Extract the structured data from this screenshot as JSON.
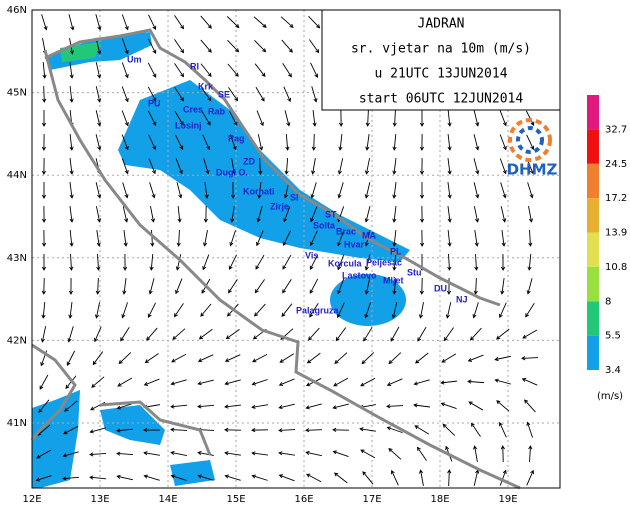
{
  "header": {
    "lines": [
      "JADRAN",
      "sr. vjetar na 10m (m/s)",
      "u 21UTC 13JUN2014",
      "start 06UTC 12JUN2014"
    ]
  },
  "logo": {
    "label": "DHMZ"
  },
  "axes": {
    "lon_labels": [
      "12E",
      "13E",
      "14E",
      "15E",
      "16E",
      "17E",
      "18E",
      "19E"
    ],
    "lat_labels": [
      "46N",
      "45N",
      "44N",
      "43N",
      "42N",
      "41N"
    ]
  },
  "legend": {
    "unit": "(m/s)",
    "levels": [
      {
        "label": "3.4",
        "color": "#12a0e8"
      },
      {
        "label": "5.5",
        "color": "#20c878"
      },
      {
        "label": "8",
        "color": "#98e040"
      },
      {
        "label": "10.8",
        "color": "#e0e050"
      },
      {
        "label": "13.9",
        "color": "#e8b030"
      },
      {
        "label": "17.2",
        "color": "#f08030"
      },
      {
        "label": "24.5",
        "color": "#f01010"
      },
      {
        "label": "32.7",
        "color": "#e01880"
      }
    ]
  },
  "places": [
    "Um",
    "RI",
    "Krk",
    "SE",
    "PU",
    "Cres",
    "Rab",
    "Losinj",
    "Pag",
    "ZD",
    "Dugi O.",
    "Kornati",
    "SI",
    "Zirje",
    "ST",
    "Solta",
    "Brac",
    "MA",
    "Hvar",
    "PL",
    "Vis",
    "Korcula",
    "Peljesac",
    "Lastovo",
    "Mljet",
    "Stu",
    "DU",
    "NJ",
    "Palagruza"
  ]
}
